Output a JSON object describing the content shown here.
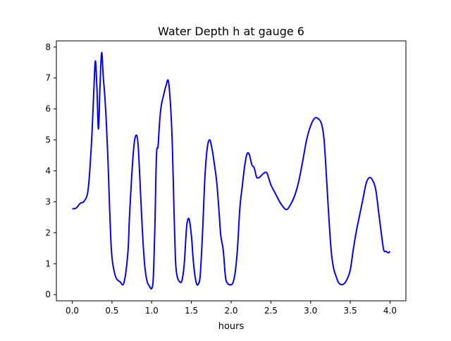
{
  "chart_data": {
    "type": "line",
    "title": "Water Depth h at gauge 6",
    "xlabel": "hours",
    "ylabel": "",
    "xlim": [
      -0.2,
      4.2
    ],
    "ylim": [
      -0.2,
      8.2
    ],
    "xticks": [
      0.0,
      0.5,
      1.0,
      1.5,
      2.0,
      2.5,
      3.0,
      3.5,
      4.0
    ],
    "xtick_labels": [
      "0.0",
      "0.5",
      "1.0",
      "1.5",
      "2.0",
      "2.5",
      "3.0",
      "3.5",
      "4.0"
    ],
    "yticks": [
      0,
      1,
      2,
      3,
      4,
      5,
      6,
      7,
      8
    ],
    "ytick_labels": [
      "0",
      "1",
      "2",
      "3",
      "4",
      "5",
      "6",
      "7",
      "8"
    ],
    "grid": false,
    "series": [
      {
        "color": "#0000ff",
        "x": [
          0.0,
          0.05,
          0.1,
          0.15,
          0.2,
          0.24,
          0.27,
          0.29,
          0.31,
          0.33,
          0.35,
          0.37,
          0.39,
          0.41,
          0.43,
          0.45,
          0.47,
          0.49,
          0.51,
          0.55,
          0.6,
          0.65,
          0.7,
          0.72,
          0.75,
          0.78,
          0.81,
          0.83,
          0.85,
          0.88,
          0.91,
          0.94,
          0.97,
          1.0,
          1.02,
          1.04,
          1.06,
          1.08,
          1.1,
          1.12,
          1.15,
          1.18,
          1.21,
          1.24,
          1.26,
          1.28,
          1.3,
          1.32,
          1.35,
          1.38,
          1.41,
          1.44,
          1.47,
          1.5,
          1.52,
          1.54,
          1.56,
          1.58,
          1.61,
          1.64,
          1.67,
          1.7,
          1.73,
          1.76,
          1.79,
          1.82,
          1.85,
          1.87,
          1.9,
          1.93,
          1.96,
          1.99,
          2.02,
          2.05,
          2.08,
          2.11,
          2.14,
          2.17,
          2.2,
          2.23,
          2.26,
          2.29,
          2.32,
          2.35,
          2.38,
          2.41,
          2.45,
          2.5,
          2.55,
          2.6,
          2.65,
          2.7,
          2.75,
          2.8,
          2.85,
          2.9,
          2.95,
          3.0,
          3.05,
          3.1,
          3.14,
          3.17,
          3.2,
          3.23,
          3.26,
          3.29,
          3.32,
          3.35,
          3.38,
          3.42,
          3.46,
          3.5,
          3.54,
          3.58,
          3.62,
          3.66,
          3.7,
          3.74,
          3.78,
          3.82,
          3.86,
          3.89,
          3.92,
          3.95,
          3.98,
          4.0
        ],
        "y": [
          2.77,
          2.8,
          2.95,
          3.02,
          3.4,
          4.8,
          6.5,
          7.55,
          6.7,
          5.35,
          6.8,
          7.82,
          7.05,
          6.4,
          5.5,
          4.3,
          2.8,
          1.55,
          1.0,
          0.55,
          0.42,
          0.38,
          1.35,
          2.5,
          3.9,
          4.9,
          5.15,
          4.8,
          3.8,
          2.2,
          1.0,
          0.45,
          0.28,
          0.2,
          0.55,
          2.2,
          4.5,
          4.8,
          5.6,
          6.1,
          6.45,
          6.75,
          6.9,
          6.0,
          4.8,
          2.8,
          1.1,
          0.6,
          0.42,
          0.45,
          1.0,
          2.2,
          2.45,
          1.9,
          1.2,
          0.7,
          0.4,
          0.32,
          0.6,
          2.0,
          3.8,
          4.75,
          5.0,
          4.7,
          4.2,
          3.6,
          2.6,
          1.9,
          1.45,
          0.55,
          0.35,
          0.32,
          0.37,
          0.7,
          1.5,
          2.8,
          3.5,
          4.15,
          4.55,
          4.52,
          4.2,
          4.1,
          3.8,
          3.78,
          3.85,
          3.92,
          3.93,
          3.55,
          3.3,
          3.05,
          2.85,
          2.75,
          2.92,
          3.2,
          3.65,
          4.3,
          5.0,
          5.45,
          5.7,
          5.68,
          5.5,
          5.0,
          3.8,
          2.5,
          1.4,
          0.85,
          0.6,
          0.4,
          0.33,
          0.35,
          0.5,
          0.8,
          1.5,
          2.1,
          2.6,
          3.1,
          3.6,
          3.78,
          3.7,
          3.4,
          2.6,
          2.0,
          1.45,
          1.4,
          1.35,
          1.4
        ]
      }
    ]
  }
}
